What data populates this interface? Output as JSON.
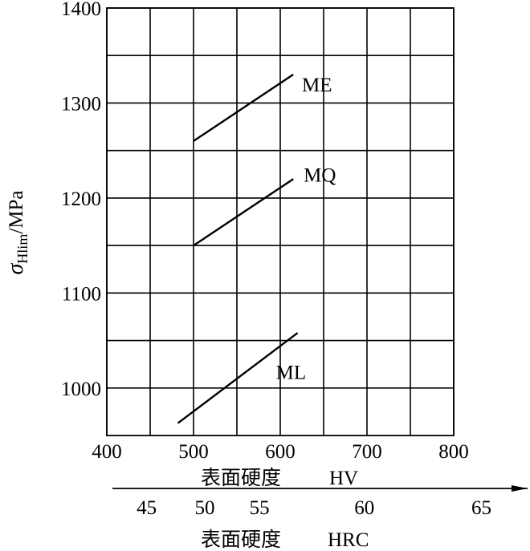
{
  "chart_data": {
    "type": "line",
    "ylabel_symbol": "σ",
    "ylabel_subscript": "Hlim",
    "ylabel_unit": "/MPa",
    "xlabel": "表面硬度",
    "xunit": "HV",
    "xlim": [
      400,
      800
    ],
    "ylim": [
      950,
      1400
    ],
    "yticks": [
      "1000",
      "1100",
      "1200",
      "1300",
      "1400"
    ],
    "xticks": [
      "400",
      "500",
      "600",
      "700",
      "800"
    ],
    "secondary_axis": {
      "label": "表面硬度",
      "unit": "HRC",
      "ticks": [
        {
          "label": "45",
          "hv": 446
        },
        {
          "label": "50",
          "hv": 513
        },
        {
          "label": "55",
          "hv": 576
        },
        {
          "label": "60",
          "hv": 697
        },
        {
          "label": "65",
          "hv": 832
        }
      ]
    },
    "grid": true,
    "series": [
      {
        "name": "ME",
        "x": [
          500,
          615
        ],
        "y": [
          1260,
          1330
        ],
        "label_at": [
          625,
          1320
        ]
      },
      {
        "name": "MQ",
        "x": [
          500,
          615
        ],
        "y": [
          1150,
          1220
        ],
        "label_at": [
          627,
          1225
        ]
      },
      {
        "name": "ML",
        "x": [
          482,
          620
        ],
        "y": [
          963,
          1058
        ],
        "label_at": [
          595,
          1017
        ]
      }
    ]
  }
}
